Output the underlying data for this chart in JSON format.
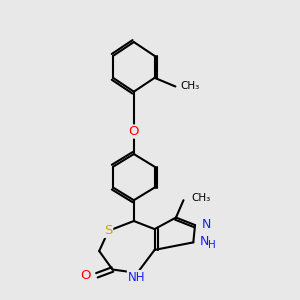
{
  "bg_color": "#e8e8e8",
  "bond_color": "#000000",
  "bond_width": 1.5,
  "atom_colors": {
    "N": "#1a1aff",
    "O": "#ff0000",
    "S": "#ccaa00",
    "C": "#000000"
  },
  "font_size": 8.5,
  "xlim": [
    -1.6,
    1.8
  ],
  "ylim": [
    -1.9,
    3.2
  ]
}
